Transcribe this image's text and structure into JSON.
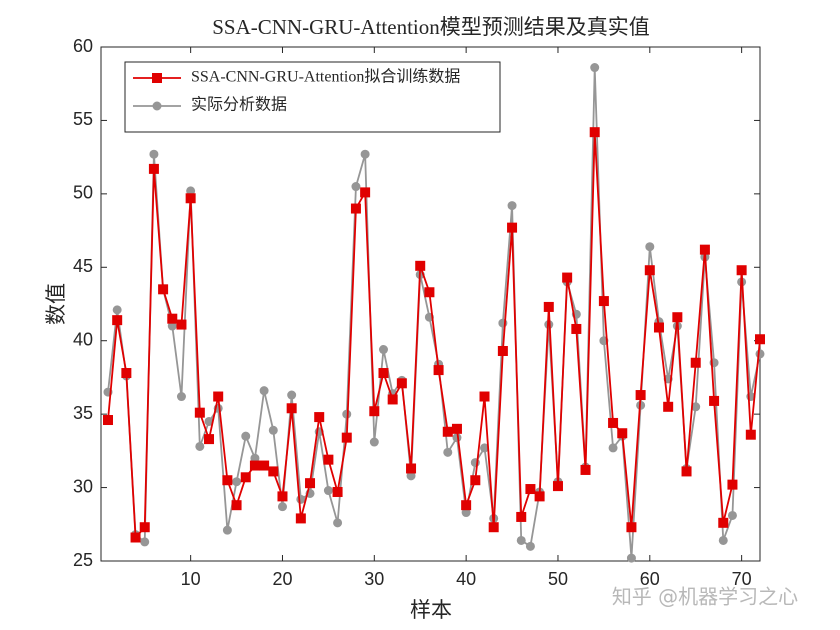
{
  "chart_data": {
    "type": "line",
    "title": "SSA-CNN-GRU-Attention模型预测结果及真实值",
    "x_label": "样本",
    "y_label": "数值",
    "annotation": "知乎 @机器学习之心",
    "x": [
      1,
      2,
      3,
      4,
      5,
      6,
      7,
      8,
      9,
      10,
      11,
      12,
      13,
      14,
      15,
      16,
      17,
      18,
      19,
      20,
      21,
      22,
      23,
      24,
      25,
      26,
      27,
      28,
      29,
      30,
      31,
      32,
      33,
      34,
      35,
      36,
      37,
      38,
      39,
      40,
      41,
      42,
      43,
      44,
      45,
      46,
      47,
      48,
      49,
      50,
      51,
      52,
      53,
      54,
      55,
      56,
      57,
      58,
      59,
      60,
      61,
      62,
      63,
      64,
      65,
      66,
      67,
      68,
      69,
      70,
      71,
      72
    ],
    "series": [
      {
        "name": "SSA-CNN-GRU-Attention拟合训练数据",
        "color": "#e00000",
        "marker": "square",
        "values": [
          34.6,
          41.4,
          37.8,
          26.6,
          27.3,
          51.7,
          43.5,
          41.5,
          41.1,
          49.7,
          35.1,
          33.3,
          36.2,
          30.5,
          28.8,
          30.7,
          31.5,
          31.5,
          31.1,
          29.4,
          35.4,
          27.9,
          30.3,
          34.8,
          31.9,
          29.7,
          33.4,
          49.0,
          50.1,
          35.2,
          37.8,
          36.0,
          37.1,
          31.3,
          45.1,
          43.3,
          38.0,
          33.8,
          34.0,
          28.8,
          30.5,
          36.2,
          27.3,
          39.3,
          47.7,
          28.0,
          29.9,
          29.4,
          42.3,
          30.1,
          44.3,
          40.8,
          31.2,
          54.2,
          42.7,
          34.4,
          33.7,
          27.3,
          36.3,
          44.8,
          40.9,
          35.5,
          41.6,
          31.1,
          38.5,
          46.2,
          35.9,
          27.6,
          30.2,
          44.8,
          33.6,
          40.1
        ]
      },
      {
        "name": "实际分析数据",
        "color": "#969696",
        "marker": "circle",
        "values": [
          36.5,
          42.1,
          37.6,
          26.8,
          26.3,
          52.7,
          43.5,
          41.0,
          36.2,
          50.2,
          32.8,
          34.5,
          35.4,
          27.1,
          30.4,
          33.5,
          32.0,
          36.6,
          33.9,
          28.7,
          36.3,
          29.2,
          29.6,
          33.8,
          29.8,
          27.6,
          35.0,
          50.5,
          52.7,
          33.1,
          39.4,
          36.4,
          37.3,
          30.8,
          44.5,
          41.6,
          38.4,
          32.4,
          33.4,
          28.3,
          31.7,
          32.7,
          27.9,
          41.2,
          49.2,
          26.4,
          26.0,
          29.7,
          41.1,
          30.4,
          44.0,
          41.8,
          31.4,
          58.6,
          40.0,
          32.7,
          33.5,
          25.2,
          35.6,
          46.4,
          41.3,
          37.4,
          41.0,
          31.3,
          35.5,
          45.7,
          38.5,
          26.4,
          28.1,
          44.0,
          36.2,
          39.1
        ]
      }
    ],
    "xlim": [
      1,
      72
    ],
    "xticks": [
      10,
      20,
      30,
      40,
      50,
      60,
      70
    ],
    "ylim": [
      25,
      60
    ],
    "yticks": [
      25,
      30,
      35,
      40,
      45,
      50,
      55,
      60
    ],
    "grid": false,
    "legend": "upper left"
  }
}
